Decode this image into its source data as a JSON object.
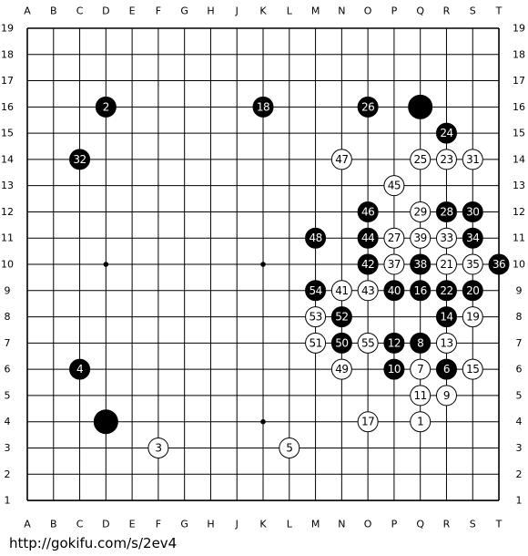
{
  "board": {
    "columns": [
      "A",
      "B",
      "C",
      "D",
      "E",
      "F",
      "G",
      "H",
      "J",
      "K",
      "L",
      "M",
      "N",
      "O",
      "P",
      "Q",
      "R",
      "S",
      "T"
    ],
    "rows": [
      19,
      18,
      17,
      16,
      15,
      14,
      13,
      12,
      11,
      10,
      9,
      8,
      7,
      6,
      5,
      4,
      3,
      2,
      1
    ],
    "stones": [
      {
        "col": "Q",
        "row": 16,
        "color": "black"
      },
      {
        "col": "D",
        "row": 4,
        "color": "black"
      },
      {
        "col": "Q",
        "row": 4,
        "color": "white",
        "label": 1
      },
      {
        "col": "D",
        "row": 16,
        "color": "black",
        "label": 2
      },
      {
        "col": "F",
        "row": 3,
        "color": "white",
        "label": 3
      },
      {
        "col": "C",
        "row": 6,
        "color": "black",
        "label": 4
      },
      {
        "col": "L",
        "row": 3,
        "color": "white",
        "label": 5
      },
      {
        "col": "R",
        "row": 6,
        "color": "black",
        "label": 6
      },
      {
        "col": "Q",
        "row": 6,
        "color": "white",
        "label": 7
      },
      {
        "col": "Q",
        "row": 7,
        "color": "black",
        "label": 8
      },
      {
        "col": "R",
        "row": 5,
        "color": "white",
        "label": 9
      },
      {
        "col": "P",
        "row": 6,
        "color": "black",
        "label": 10
      },
      {
        "col": "Q",
        "row": 5,
        "color": "white",
        "label": 11
      },
      {
        "col": "P",
        "row": 7,
        "color": "black",
        "label": 12
      },
      {
        "col": "R",
        "row": 7,
        "color": "white",
        "label": 13
      },
      {
        "col": "R",
        "row": 8,
        "color": "black",
        "label": 14
      },
      {
        "col": "S",
        "row": 6,
        "color": "white",
        "label": 15
      },
      {
        "col": "Q",
        "row": 9,
        "color": "black",
        "label": 16
      },
      {
        "col": "O",
        "row": 4,
        "color": "white",
        "label": 17
      },
      {
        "col": "K",
        "row": 16,
        "color": "black",
        "label": 18
      },
      {
        "col": "S",
        "row": 8,
        "color": "white",
        "label": 19
      },
      {
        "col": "S",
        "row": 9,
        "color": "black",
        "label": 20
      },
      {
        "col": "R",
        "row": 10,
        "color": "white",
        "label": 21
      },
      {
        "col": "R",
        "row": 9,
        "color": "black",
        "label": 22
      },
      {
        "col": "R",
        "row": 14,
        "color": "white",
        "label": 23
      },
      {
        "col": "R",
        "row": 15,
        "color": "black",
        "label": 24
      },
      {
        "col": "Q",
        "row": 14,
        "color": "white",
        "label": 25
      },
      {
        "col": "O",
        "row": 16,
        "color": "black",
        "label": 26
      },
      {
        "col": "P",
        "row": 11,
        "color": "white",
        "label": 27
      },
      {
        "col": "R",
        "row": 12,
        "color": "black",
        "label": 28
      },
      {
        "col": "Q",
        "row": 12,
        "color": "white",
        "label": 29
      },
      {
        "col": "S",
        "row": 12,
        "color": "black",
        "label": 30
      },
      {
        "col": "S",
        "row": 14,
        "color": "white",
        "label": 31
      },
      {
        "col": "C",
        "row": 14,
        "color": "black",
        "label": 32
      },
      {
        "col": "R",
        "row": 11,
        "color": "white",
        "label": 33
      },
      {
        "col": "S",
        "row": 11,
        "color": "black",
        "label": 34
      },
      {
        "col": "S",
        "row": 10,
        "color": "white",
        "label": 35
      },
      {
        "col": "T",
        "row": 10,
        "color": "black",
        "label": 36
      },
      {
        "col": "P",
        "row": 10,
        "color": "white",
        "label": 37
      },
      {
        "col": "Q",
        "row": 10,
        "color": "black",
        "label": 38
      },
      {
        "col": "Q",
        "row": 11,
        "color": "white",
        "label": 39
      },
      {
        "col": "P",
        "row": 9,
        "color": "black",
        "label": 40
      },
      {
        "col": "N",
        "row": 9,
        "color": "white",
        "label": 41
      },
      {
        "col": "O",
        "row": 10,
        "color": "black",
        "label": 42
      },
      {
        "col": "O",
        "row": 9,
        "color": "white",
        "label": 43
      },
      {
        "col": "O",
        "row": 11,
        "color": "black",
        "label": 44
      },
      {
        "col": "P",
        "row": 13,
        "color": "white",
        "label": 45
      },
      {
        "col": "O",
        "row": 12,
        "color": "black",
        "label": 46
      },
      {
        "col": "N",
        "row": 14,
        "color": "white",
        "label": 47
      },
      {
        "col": "M",
        "row": 11,
        "color": "black",
        "label": 48
      },
      {
        "col": "N",
        "row": 6,
        "color": "white",
        "label": 49
      },
      {
        "col": "N",
        "row": 7,
        "color": "black",
        "label": 50
      },
      {
        "col": "M",
        "row": 7,
        "color": "white",
        "label": 51
      },
      {
        "col": "N",
        "row": 8,
        "color": "black",
        "label": 52
      },
      {
        "col": "M",
        "row": 8,
        "color": "white",
        "label": 53
      },
      {
        "col": "M",
        "row": 9,
        "color": "black",
        "label": 54
      },
      {
        "col": "O",
        "row": 7,
        "color": "white",
        "label": 55
      }
    ],
    "hoshi": [
      {
        "col": "D",
        "row": 4
      },
      {
        "col": "K",
        "row": 4
      },
      {
        "col": "Q",
        "row": 4
      },
      {
        "col": "D",
        "row": 10
      },
      {
        "col": "K",
        "row": 10
      },
      {
        "col": "Q",
        "row": 10
      },
      {
        "col": "D",
        "row": 16
      },
      {
        "col": "K",
        "row": 16
      },
      {
        "col": "Q",
        "row": 16
      }
    ]
  },
  "footer": {
    "url": "http://gokifu.com/s/2ev4"
  }
}
